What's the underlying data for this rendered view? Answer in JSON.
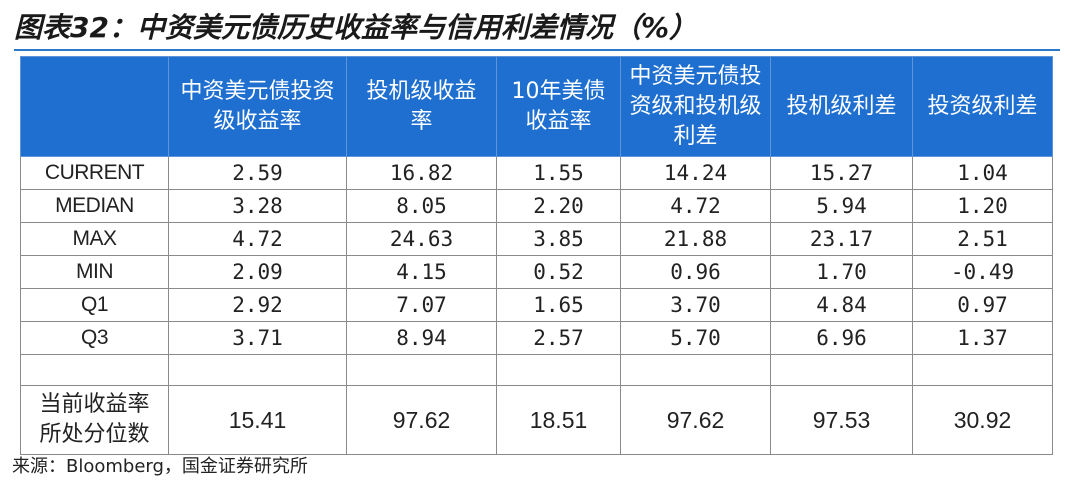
{
  "title": "图表32：中资美元债历史收益率与信用利差情况（%）",
  "header": {
    "corner": "",
    "columns": [
      "中资美元债投资级收益率",
      "投机级收益率",
      "10年美债收益率",
      "中资美元债投资级和投机级利差",
      "投机级利差",
      "投资级利差"
    ]
  },
  "rows": [
    {
      "label": "CURRENT",
      "values": [
        "2.59",
        "16.82",
        "1.55",
        "14.24",
        "15.27",
        "1.04"
      ]
    },
    {
      "label": "MEDIAN",
      "values": [
        "3.28",
        "8.05",
        "2.20",
        "4.72",
        "5.94",
        "1.20"
      ]
    },
    {
      "label": "MAX",
      "values": [
        "4.72",
        "24.63",
        "3.85",
        "21.88",
        "23.17",
        "2.51"
      ]
    },
    {
      "label": "MIN",
      "values": [
        "2.09",
        "4.15",
        "0.52",
        "0.96",
        "1.70",
        "-0.49"
      ]
    },
    {
      "label": "Q1",
      "values": [
        "2.92",
        "7.07",
        "1.65",
        "3.70",
        "4.84",
        "0.97"
      ]
    },
    {
      "label": "Q3",
      "values": [
        "3.71",
        "8.94",
        "2.57",
        "5.70",
        "6.96",
        "1.37"
      ]
    }
  ],
  "percentile_row": {
    "label": "当前收益率所处分位数",
    "values": [
      "15.41",
      "97.62",
      "18.51",
      "97.62",
      "97.53",
      "30.92"
    ]
  },
  "source": "来源：Bloomberg，国金证券研究所",
  "colors": {
    "header_bg": "#1e6fd0",
    "header_text": "#ffffff",
    "rule": "#2b78c8",
    "grid": "#8a8a8a"
  }
}
